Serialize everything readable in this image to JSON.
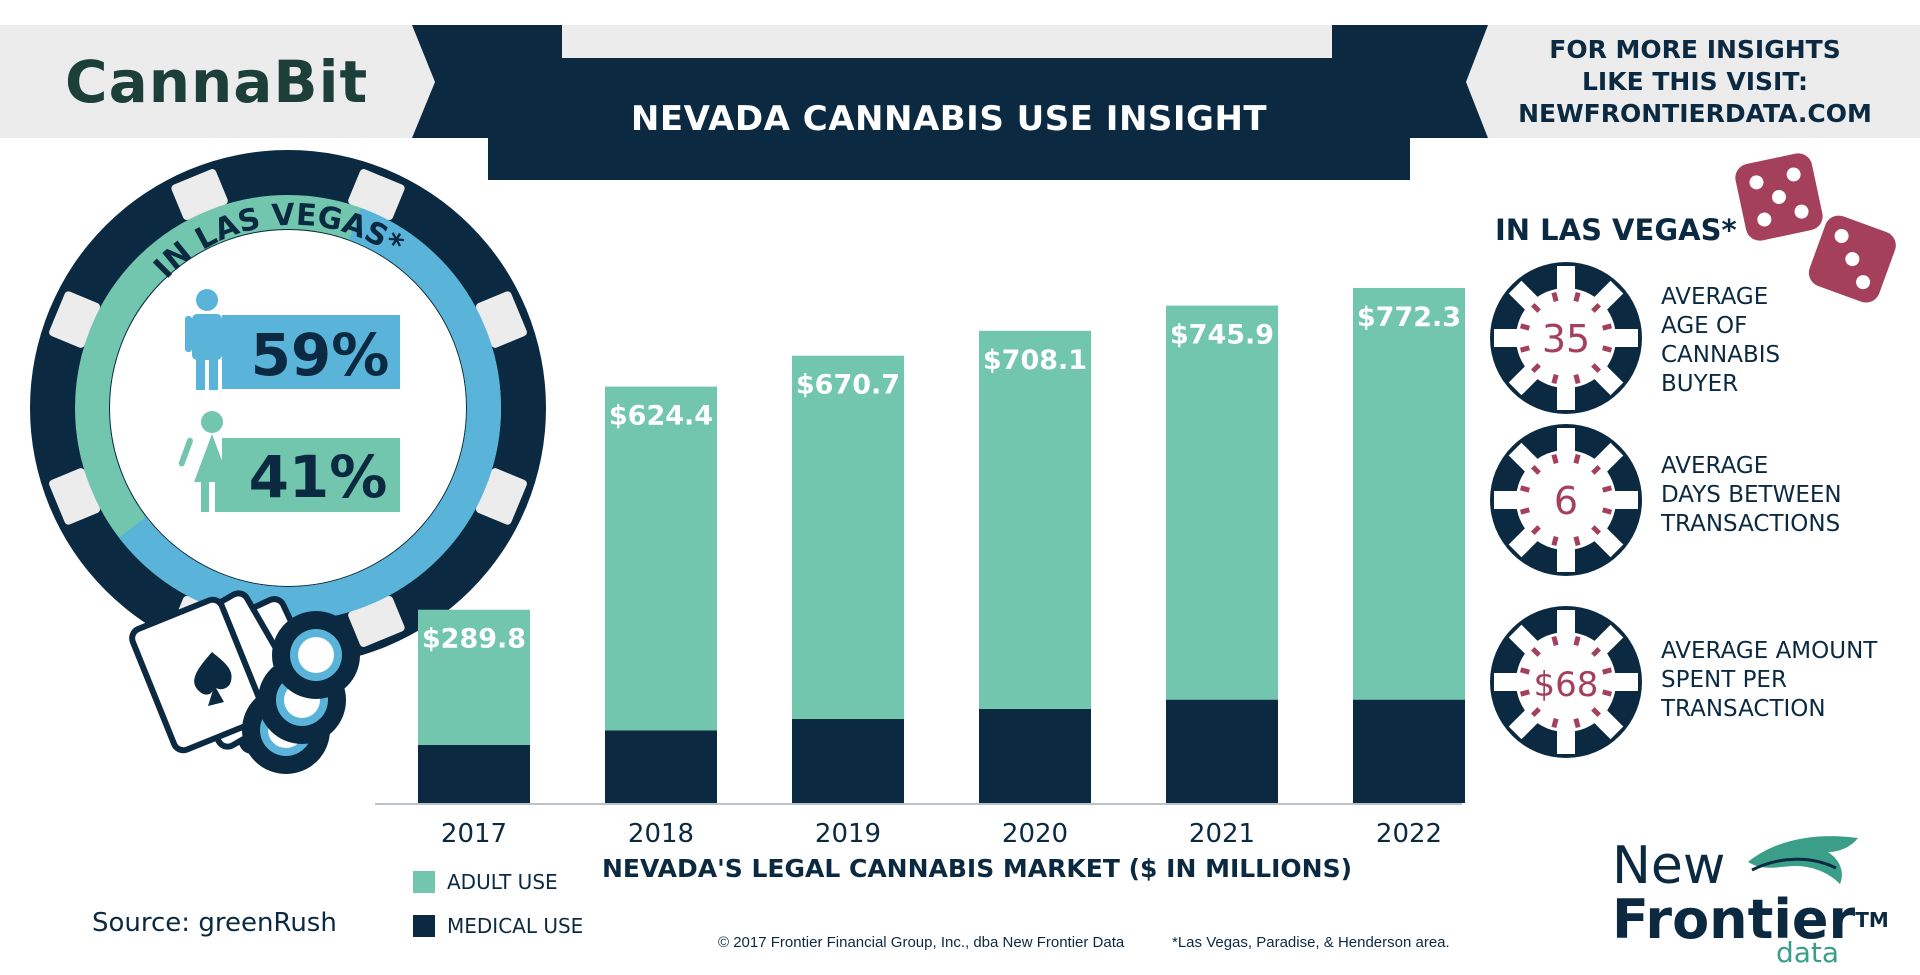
{
  "header": {
    "logo": "CannaBit",
    "title": "NEVADA CANNABIS USE INSIGHT",
    "insights_lines": [
      "FOR MORE INSIGHTS",
      "LIKE THIS VISIT:",
      "NEWFRONTIERDATA.COM"
    ]
  },
  "gender": {
    "title": "IN LAS VEGAS*",
    "male_pct": "59%",
    "female_pct": "41%",
    "male_value": 59,
    "female_value": 41
  },
  "stats": {
    "title": "IN LAS VEGAS*",
    "items": [
      {
        "value": "35",
        "label_lines": [
          "AVERAGE",
          "AGE OF",
          "CANNABIS",
          "BUYER"
        ]
      },
      {
        "value": "6",
        "label_lines": [
          "AVERAGE",
          "DAYS BETWEEN",
          "TRANSACTIONS"
        ]
      },
      {
        "value": "$68",
        "label_lines": [
          "AVERAGE AMOUNT",
          "SPENT PER",
          "TRANSACTION"
        ]
      }
    ]
  },
  "chart_data": {
    "type": "bar",
    "stacked": true,
    "title": "NEVADA'S LEGAL CANNABIS MARKET ($ IN MILLIONS)",
    "categories": [
      "2017",
      "2018",
      "2019",
      "2020",
      "2021",
      "2022"
    ],
    "total_labels": [
      "$289.8",
      "$624.4",
      "$670.7",
      "$708.1",
      "$745.9",
      "$772.3"
    ],
    "totals": [
      289.8,
      624.4,
      670.7,
      708.1,
      745.9,
      772.3
    ],
    "series": [
      {
        "name": "MEDICAL USE",
        "color": "#0b2a42",
        "values": [
          87,
          109,
          126,
          141,
          155,
          155
        ]
      },
      {
        "name": "ADULT USE",
        "color": "#72c6ad",
        "values": [
          202.8,
          515.4,
          544.7,
          567.1,
          590.9,
          617.3
        ]
      }
    ],
    "ylim": [
      0,
      800
    ],
    "legend_position": "bottom-left"
  },
  "legend": {
    "adult": "ADULT USE",
    "medical": "MEDICAL USE"
  },
  "footer": {
    "source": "Source: greenRush",
    "copyright": "© 2017 Frontier Financial Group, Inc., dba New Frontier Data",
    "footnote": "*Las Vegas, Paradise, & Henderson area.",
    "nf_new": "New",
    "nf_frontier": "Frontier",
    "nf_tm": "TM",
    "nf_data": "data"
  },
  "colors": {
    "navy": "#0b2a42",
    "mint": "#72c6ad",
    "sky": "#5ab4da",
    "maroon": "#a4405c"
  }
}
